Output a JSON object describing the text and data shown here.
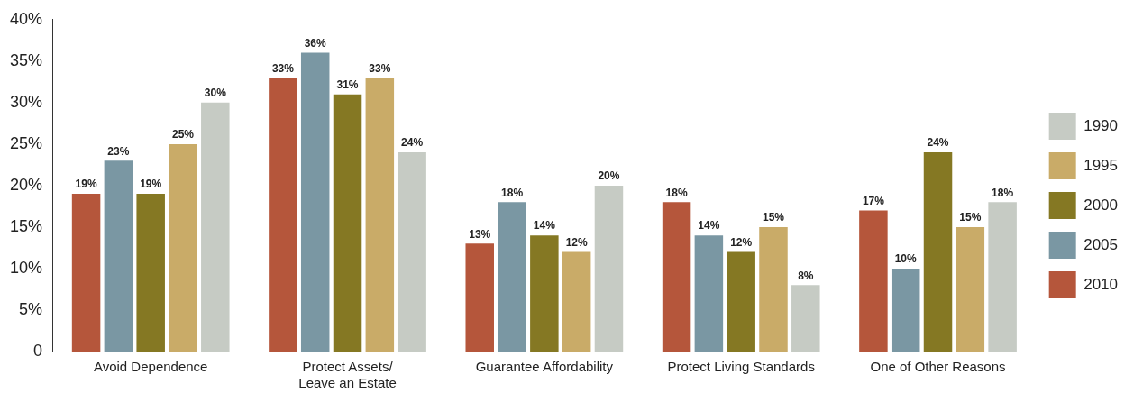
{
  "chart_data": {
    "type": "bar",
    "categories": [
      "Avoid Dependence",
      "Protect Assets/\nLeave an Estate",
      "Guarantee Affordability",
      "Protect Living Standards",
      "One of Other Reasons"
    ],
    "series": [
      {
        "name": "2010",
        "color": "#b5563b",
        "values": [
          19,
          33,
          13,
          18,
          17
        ],
        "value_labels": [
          "19%",
          "33%",
          "13%",
          "18%",
          "17%"
        ]
      },
      {
        "name": "2005",
        "color": "#7a97a3",
        "values": [
          23,
          36,
          18,
          14,
          10
        ],
        "value_labels": [
          "23%",
          "36%",
          "18%",
          "14%",
          "10%"
        ]
      },
      {
        "name": "2000",
        "color": "#857823",
        "values": [
          19,
          31,
          14,
          12,
          24
        ],
        "value_labels": [
          "19%",
          "31%",
          "14%",
          "12%",
          "24%"
        ]
      },
      {
        "name": "1995",
        "color": "#c9ab68",
        "values": [
          25,
          33,
          12,
          15,
          15
        ],
        "value_labels": [
          "25%",
          "33%",
          "12%",
          "15%",
          "15%"
        ]
      },
      {
        "name": "1990",
        "color": "#c6cbc4",
        "values": [
          30,
          24,
          20,
          8,
          18
        ],
        "value_labels": [
          "30%",
          "24%",
          "20%",
          "8%",
          "18%"
        ]
      }
    ],
    "ylim": [
      0,
      40
    ],
    "yticks": [
      0,
      {
        "value": 5,
        "label": "5%"
      },
      {
        "value": 10,
        "label": "10%"
      },
      {
        "value": 15,
        "label": "15%"
      },
      {
        "value": 20,
        "label": "20%"
      },
      {
        "value": 25,
        "label": "25%"
      },
      {
        "value": 30,
        "label": "30%"
      },
      {
        "value": 35,
        "label": "35%"
      },
      {
        "value": 40,
        "label": "40%"
      }
    ],
    "grid": false,
    "legend": "right"
  }
}
